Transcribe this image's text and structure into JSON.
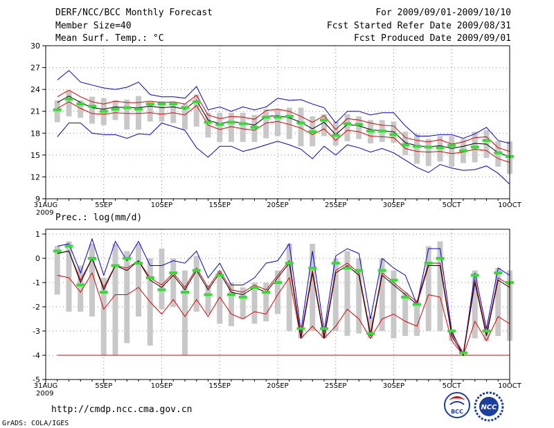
{
  "header": {
    "title": "DERF/NCC/BCC Monthly Forecast",
    "member_size": "Member Size=40",
    "variable": "Mean Surf. Temp.: °C",
    "period": "For 2009/09/01-2009/10/10",
    "started": "Fcst Started Refer Date 2009/08/31",
    "produced": "Fcst Produced Date 2009/09/01"
  },
  "footer": {
    "url": "http://cmdp.ncc.cma.gov.cn",
    "grads": "GrADS: COLA/IGES",
    "logo_bcc": "BCC",
    "logo_ncc": "NCC"
  },
  "colors": {
    "box": "#c8c8c8",
    "ens_mean": "#000000",
    "std_band": "#dd0000",
    "minmax": "#0000dd",
    "median": "#33dd33",
    "grid": "#888888"
  },
  "chart_data": [
    {
      "type": "line",
      "name": "temperature",
      "title": "Mean Surf. Temp.: °C",
      "ylim": [
        9,
        30
      ],
      "yticks": [
        9,
        12,
        15,
        18,
        21,
        24,
        27,
        30
      ],
      "xlim": [
        0,
        40
      ],
      "xticks": [
        {
          "x": 0,
          "label": "31AUG",
          "sub": "2009"
        },
        {
          "x": 5,
          "label": "5SEP"
        },
        {
          "x": 10,
          "label": "10SEP"
        },
        {
          "x": 15,
          "label": "15SEP"
        },
        {
          "x": 20,
          "label": "20SEP"
        },
        {
          "x": 25,
          "label": "25SEP"
        },
        {
          "x": 30,
          "label": "30SEP"
        },
        {
          "x": 35,
          "label": "5OCT"
        },
        {
          "x": 40,
          "label": "10OCT"
        }
      ],
      "x": [
        1,
        2,
        3,
        4,
        5,
        6,
        7,
        8,
        9,
        10,
        11,
        12,
        13,
        14,
        15,
        16,
        17,
        18,
        19,
        20,
        21,
        22,
        23,
        24,
        25,
        26,
        27,
        28,
        29,
        30,
        31,
        32,
        33,
        34,
        35,
        36,
        37,
        38,
        39,
        40
      ],
      "series": [
        {
          "name": "max",
          "values": [
            25.3,
            26.6,
            25.0,
            24.6,
            24.2,
            24.0,
            24.3,
            25.0,
            23.3,
            23.0,
            23.0,
            22.8,
            24.4,
            21.2,
            21.6,
            21.0,
            21.6,
            21.2,
            21.6,
            22.8,
            22.5,
            22.6,
            22.0,
            21.5,
            19.4,
            21.0,
            21.0,
            20.5,
            20.8,
            20.8,
            19.0,
            17.6,
            17.6,
            17.8,
            17.8,
            17.3,
            17.9,
            18.8,
            17.0,
            16.6
          ]
        },
        {
          "name": "std_upper",
          "values": [
            23.0,
            23.9,
            23.0,
            22.3,
            22.0,
            22.4,
            22.2,
            22.2,
            22.4,
            22.2,
            22.3,
            22.0,
            23.2,
            20.5,
            20.0,
            20.3,
            20.2,
            19.9,
            21.1,
            21.3,
            21.0,
            20.3,
            19.5,
            20.4,
            18.5,
            20.0,
            19.8,
            19.4,
            19.1,
            19.0,
            17.4,
            17.0,
            16.8,
            17.1,
            16.5,
            16.8,
            17.4,
            17.5,
            16.0,
            15.5
          ]
        },
        {
          "name": "mean",
          "values": [
            22.2,
            23.1,
            22.2,
            21.5,
            21.3,
            21.6,
            21.5,
            21.5,
            21.7,
            21.5,
            21.6,
            21.3,
            22.5,
            19.8,
            19.3,
            19.6,
            19.4,
            19.1,
            20.3,
            20.4,
            20.1,
            19.5,
            18.6,
            19.5,
            17.8,
            19.2,
            19.0,
            18.5,
            18.3,
            18.2,
            16.7,
            16.3,
            16.1,
            16.3,
            15.9,
            16.2,
            16.6,
            16.5,
            15.3,
            14.8
          ]
        },
        {
          "name": "std_lower",
          "values": [
            21.4,
            22.3,
            21.4,
            20.7,
            20.6,
            20.8,
            20.7,
            20.7,
            20.8,
            20.6,
            20.8,
            20.5,
            21.8,
            19.1,
            18.5,
            18.9,
            18.6,
            18.4,
            19.4,
            19.6,
            19.2,
            18.7,
            17.8,
            18.6,
            17.0,
            18.4,
            18.2,
            17.6,
            17.5,
            17.4,
            15.9,
            15.5,
            15.4,
            15.5,
            15.2,
            15.4,
            15.8,
            15.6,
            14.5,
            14.0
          ]
        },
        {
          "name": "min",
          "values": [
            17.5,
            19.4,
            19.4,
            18.0,
            17.8,
            17.8,
            17.3,
            17.9,
            17.8,
            19.4,
            18.9,
            18.4,
            16.0,
            14.7,
            16.2,
            16.2,
            15.5,
            15.9,
            16.4,
            16.9,
            16.4,
            15.8,
            14.5,
            16.2,
            15.0,
            16.4,
            16.0,
            15.4,
            15.9,
            15.3,
            14.3,
            13.3,
            12.6,
            13.7,
            13.2,
            12.9,
            13.0,
            13.5,
            12.5,
            11.0
          ]
        },
        {
          "name": "box_high",
          "values": [
            22.5,
            23.8,
            22.5,
            23.0,
            22.8,
            22.5,
            22.6,
            23.1,
            22.3,
            22.4,
            22.2,
            22.0,
            23.3,
            20.8,
            20.8,
            20.8,
            20.8,
            20.5,
            21.3,
            21.3,
            21.5,
            21.5,
            20.3,
            20.6,
            19.6,
            20.6,
            20.3,
            19.8,
            19.8,
            19.6,
            18.2,
            17.9,
            17.2,
            17.6,
            17.6,
            17.2,
            18.2,
            18.4,
            16.9,
            16.9
          ]
        },
        {
          "name": "box_low",
          "values": [
            19.5,
            20.3,
            20.1,
            19.3,
            19.1,
            19.8,
            18.5,
            18.5,
            19.6,
            19.6,
            19.4,
            18.5,
            18.9,
            17.4,
            16.8,
            16.8,
            16.8,
            16.8,
            17.3,
            17.6,
            17.2,
            16.2,
            16.2,
            17.6,
            16.3,
            16.9,
            17.2,
            16.6,
            16.8,
            16.7,
            15.0,
            13.8,
            13.5,
            14.1,
            13.4,
            13.9,
            14.0,
            14.6,
            13.4,
            12.4
          ]
        },
        {
          "name": "median",
          "values": [
            21.2,
            22.7,
            22.0,
            21.7,
            21.0,
            21.3,
            21.5,
            21.3,
            22.0,
            22.0,
            22.0,
            21.5,
            22.3,
            19.5,
            19.2,
            19.5,
            19.3,
            18.8,
            20.2,
            20.2,
            20.3,
            19.4,
            18.2,
            19.8,
            17.7,
            19.3,
            19.2,
            18.3,
            18.3,
            17.8,
            16.4,
            16.2,
            16.1,
            16.0,
            16.3,
            15.6,
            16.1,
            17.0,
            15.3,
            14.8
          ]
        }
      ]
    },
    {
      "type": "line",
      "name": "precipitation",
      "title": "Prec.: log(mm/d)",
      "ylim": [
        -5,
        1.2
      ],
      "yticks": [
        -5,
        -4,
        -3,
        -2,
        -1,
        0,
        1
      ],
      "xlim": [
        0,
        40
      ],
      "xticks": [
        {
          "x": 0,
          "label": "31AUG",
          "sub": "2009"
        },
        {
          "x": 5,
          "label": "5SEP"
        },
        {
          "x": 10,
          "label": "10SEP"
        },
        {
          "x": 15,
          "label": "15SEP"
        },
        {
          "x": 20,
          "label": "20SEP"
        },
        {
          "x": 25,
          "label": "25SEP"
        },
        {
          "x": 30,
          "label": "30SEP"
        },
        {
          "x": 35,
          "label": "5OCT"
        },
        {
          "x": 40,
          "label": "10OCT"
        }
      ],
      "x": [
        1,
        2,
        3,
        4,
        5,
        6,
        7,
        8,
        9,
        10,
        11,
        12,
        13,
        14,
        15,
        16,
        17,
        18,
        19,
        20,
        21,
        22,
        23,
        24,
        25,
        26,
        27,
        28,
        29,
        30,
        31,
        32,
        33,
        34,
        35,
        36,
        37,
        38,
        39,
        40
      ],
      "series": [
        {
          "name": "max",
          "values": [
            0.5,
            0.6,
            -0.6,
            0.8,
            -0.7,
            0.7,
            -0.1,
            0.7,
            -0.3,
            -0.3,
            -0.1,
            -0.2,
            0.3,
            -0.8,
            -0.2,
            -1.1,
            -1.1,
            -0.8,
            -0.2,
            -0.1,
            0.6,
            -3.0,
            0.3,
            -3.0,
            0.1,
            0.4,
            0.2,
            -2.5,
            0.0,
            -0.4,
            -0.7,
            -1.9,
            0.4,
            0.4,
            -3.0,
            -4.0,
            -0.6,
            -2.9,
            -0.4,
            -0.7
          ]
        },
        {
          "name": "mean",
          "values": [
            0.2,
            0.3,
            -1.0,
            0.0,
            -1.3,
            -0.3,
            -0.5,
            -0.1,
            -0.9,
            -1.2,
            -0.7,
            -1.3,
            -0.5,
            -1.3,
            -0.6,
            -1.4,
            -1.5,
            -1.2,
            -1.4,
            -0.8,
            -0.2,
            -3.3,
            -0.6,
            -3.3,
            -0.6,
            -0.3,
            -0.7,
            -3.2,
            -0.7,
            -1.1,
            -1.5,
            -1.9,
            -0.3,
            -0.3,
            -3.2,
            -4.0,
            -1.0,
            -3.2,
            -0.9,
            -1.2
          ]
        },
        {
          "name": "std_upper",
          "values": [
            0.2,
            0.3,
            -0.9,
            0.0,
            -1.2,
            -0.3,
            -0.4,
            -0.1,
            -0.8,
            -1.1,
            -0.6,
            -1.2,
            -0.4,
            -1.2,
            -0.5,
            -1.3,
            -1.4,
            -1.1,
            -1.3,
            -0.7,
            -0.1,
            -3.2,
            -0.5,
            -3.2,
            -0.5,
            -0.2,
            -0.6,
            -3.1,
            -0.6,
            -1.0,
            -1.4,
            -1.8,
            -0.2,
            -0.2,
            -3.1,
            -3.9,
            -0.9,
            -3.1,
            -0.8,
            -1.1
          ]
        },
        {
          "name": "std_lower",
          "values": [
            -0.7,
            -0.8,
            -1.4,
            -0.6,
            -2.1,
            -1.5,
            -1.5,
            -1.2,
            -1.8,
            -2.3,
            -1.7,
            -2.4,
            -1.7,
            -2.4,
            -1.6,
            -2.3,
            -2.5,
            -2.2,
            -2.3,
            -1.5,
            -0.8,
            -3.3,
            -2.8,
            -3.3,
            -2.8,
            -2.1,
            -2.5,
            -3.3,
            -2.5,
            -2.3,
            -2.6,
            -2.8,
            -1.5,
            -1.6,
            -3.4,
            -4.0,
            -2.6,
            -3.4,
            -2.4,
            -2.7
          ]
        },
        {
          "name": "min",
          "values": [
            -4.0,
            -4.0,
            -4.0,
            -4.0,
            -4.0,
            -4.0,
            -4.0,
            -4.0,
            -4.0,
            -4.0,
            -4.0,
            -4.0,
            -4.0,
            -4.0,
            -4.0,
            -4.0,
            -4.0,
            -4.0,
            -4.0,
            -4.0,
            -4.0,
            -4.0,
            -4.0,
            -4.0,
            -4.0,
            -4.0,
            -4.0,
            -4.0,
            -4.0,
            -4.0,
            -4.0,
            -4.0,
            -4.0,
            -4.0,
            -4.0,
            -4.0,
            -4.0,
            -4.0,
            -4.0,
            -4.0
          ]
        },
        {
          "name": "box_high",
          "values": [
            0.5,
            0.7,
            -0.3,
            0.6,
            -0.8,
            0.6,
            0.3,
            0.6,
            0.0,
            0.4,
            0.0,
            -0.5,
            0.1,
            -1.1,
            -0.5,
            -1.0,
            -1.2,
            -1.0,
            -1.0,
            -0.5,
            0.6,
            -3.0,
            0.6,
            -3.0,
            0.0,
            0.3,
            0.0,
            -2.4,
            0.0,
            -0.5,
            -1.4,
            -1.7,
            0.5,
            0.7,
            -3.0,
            -4.0,
            -0.5,
            -2.8,
            -0.4,
            -0.5
          ]
        },
        {
          "name": "box_low",
          "values": [
            -1.5,
            -2.2,
            -2.2,
            -2.4,
            -4.0,
            -4.0,
            -3.5,
            -2.4,
            -3.6,
            -2.1,
            -2.0,
            -4.0,
            -2.2,
            -2.3,
            -2.7,
            -2.8,
            -2.5,
            -2.7,
            -2.6,
            -2.3,
            -3.0,
            -3.3,
            -3.0,
            -3.3,
            -3.0,
            -3.2,
            -3.1,
            -3.3,
            -3.0,
            -3.3,
            -3.2,
            -3.2,
            -3.0,
            -3.0,
            -3.4,
            -4.0,
            -3.3,
            -3.4,
            -3.2,
            -3.4
          ]
        },
        {
          "name": "median",
          "values": [
            0.3,
            0.5,
            -1.1,
            0.0,
            -1.4,
            -0.3,
            0.0,
            -0.2,
            -0.8,
            -1.3,
            -0.6,
            -1.4,
            -0.5,
            -1.5,
            -0.7,
            -1.5,
            -1.6,
            -1.2,
            -1.4,
            -1.0,
            -0.2,
            -2.9,
            -0.4,
            -2.9,
            -0.2,
            -0.4,
            -0.5,
            -3.1,
            -0.5,
            -0.9,
            -1.6,
            -1.9,
            -0.2,
            0.0,
            -3.0,
            -3.9,
            -0.7,
            -3.0,
            -0.6,
            -1.0
          ]
        }
      ]
    }
  ]
}
